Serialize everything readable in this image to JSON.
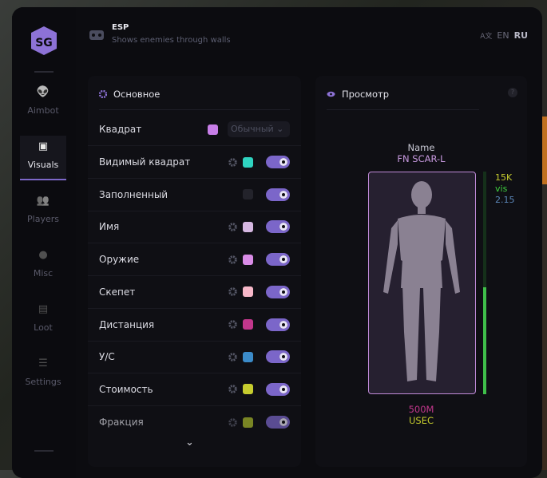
{
  "header": {
    "title": "ESP",
    "subtitle": "Shows enemies through walls",
    "lang": [
      "EN",
      "RU"
    ],
    "active_lang": "RU"
  },
  "sidebar": {
    "items": [
      {
        "label": "Aimbot",
        "icon": "alien-icon"
      },
      {
        "label": "Visuals",
        "icon": "vr-goggles-icon",
        "active": true
      },
      {
        "label": "Players",
        "icon": "group-icon"
      },
      {
        "label": "Misc",
        "icon": "dots-icon"
      },
      {
        "label": "Loot",
        "icon": "briefcase-icon"
      },
      {
        "label": "Settings",
        "icon": "list-icon"
      }
    ]
  },
  "main": {
    "title": "Основное",
    "box_label": "Квадрат",
    "box_color": "#c77ee8",
    "box_style": "Обычный",
    "rows": [
      {
        "label": "Видимый квадрат",
        "color": "#2fd3c0",
        "gear": true,
        "on": true
      },
      {
        "label": "Заполненный",
        "color": "#23232b",
        "gear": false,
        "on": true
      },
      {
        "label": "Имя",
        "color": "#d6b8e2",
        "gear": true,
        "on": true
      },
      {
        "label": "Оружие",
        "color": "#d98ce6",
        "gear": true,
        "on": true
      },
      {
        "label": "Скепет",
        "color": "#f7b8c9",
        "gear": true,
        "on": true
      },
      {
        "label": "Дистанция",
        "color": "#c2378c",
        "gear": true,
        "on": true
      },
      {
        "label": "У/С",
        "color": "#3b8bc9",
        "gear": true,
        "on": true
      },
      {
        "label": "Стоимость",
        "color": "#c6cc2e",
        "gear": true,
        "on": true
      },
      {
        "label": "Фракция",
        "color": "#a6b82b",
        "gear": true,
        "on": true
      }
    ]
  },
  "preview": {
    "title": "Просмотр",
    "help": "?",
    "name": "Name",
    "weapon": "FN SCAR-L",
    "value": "15K",
    "visible": "vis",
    "kd": "2.15",
    "distance": "500M",
    "faction": "USEC",
    "health_percent": 48,
    "colors": {
      "name": "#c8c8d4",
      "weapon": "#c89ae0",
      "value": "#c6cc2e",
      "visible": "#3fcf3f",
      "kd": "#5b86b8",
      "distance": "#c2378c",
      "faction": "#c6cc2e",
      "box": "#c08ad8",
      "health": "#3fbf4a"
    }
  }
}
